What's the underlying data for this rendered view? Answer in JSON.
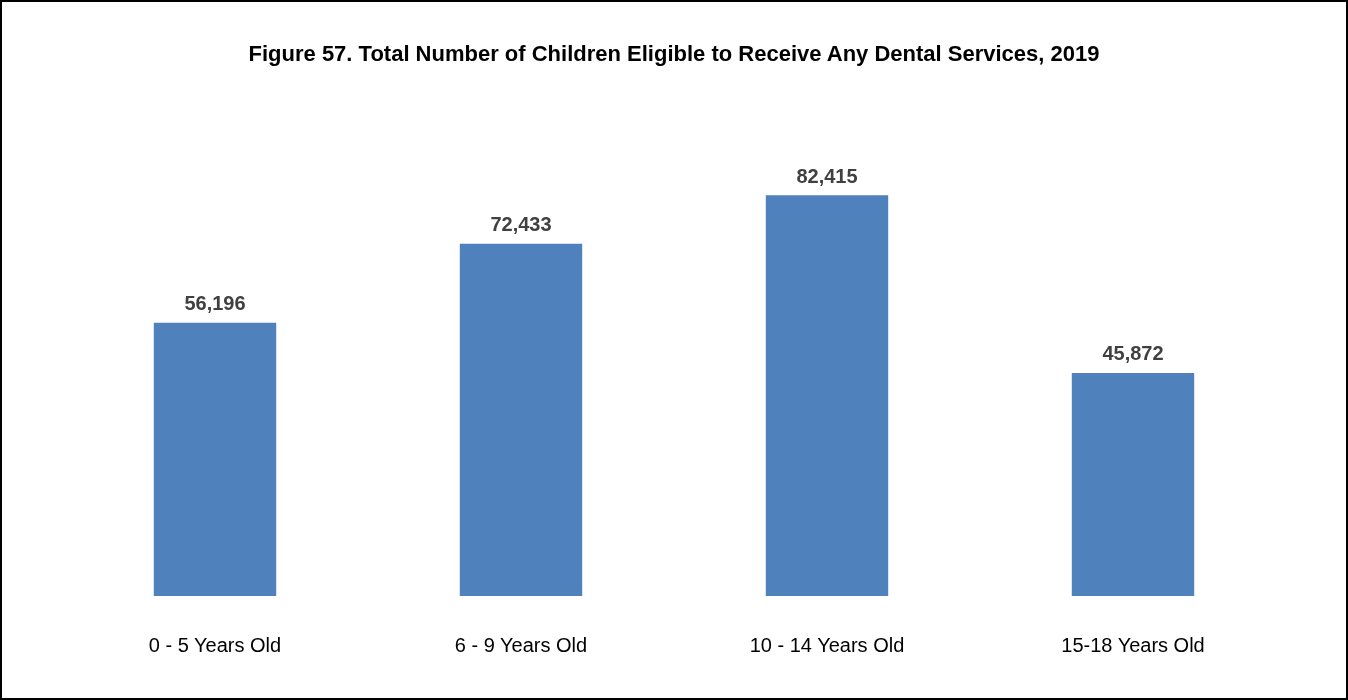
{
  "chart_data": {
    "type": "bar",
    "title": "Figure 57. Total Number of Children Eligible to Receive Any Dental Services, 2019",
    "categories": [
      "0 - 5 Years Old",
      "6 - 9 Years Old",
      "10 - 14 Years Old",
      "15-18 Years Old"
    ],
    "values": [
      56196,
      72433,
      82415,
      45872
    ],
    "value_labels": [
      "56,196",
      "72,433",
      "82,415",
      "45,872"
    ],
    "color": "#4f81bd",
    "grid": false,
    "legend": false
  }
}
